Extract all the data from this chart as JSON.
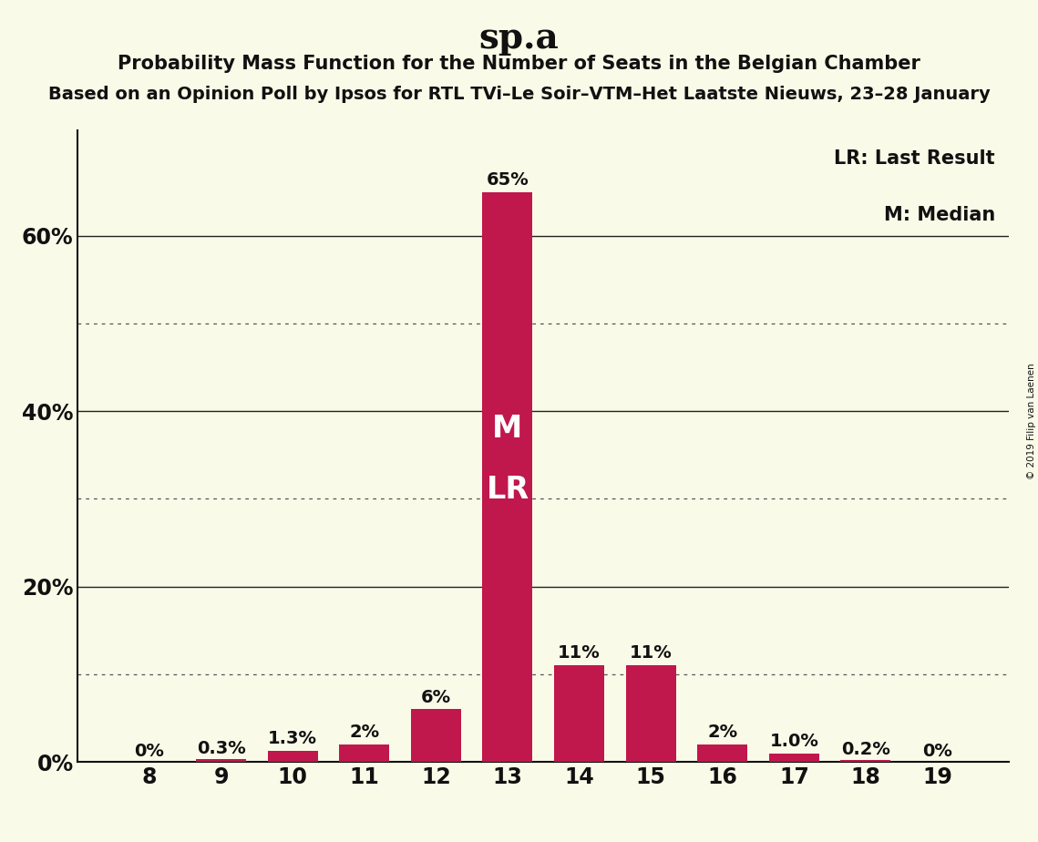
{
  "title": "sp.a",
  "subtitle": "Probability Mass Function for the Number of Seats in the Belgian Chamber",
  "subtitle2": "Based on an Opinion Poll by Ipsos for RTL TVi–Le Soir–VTM–Het Laatste Nieuws, 23–28 January",
  "copyright": "© 2019 Filip van Laenen",
  "categories": [
    8,
    9,
    10,
    11,
    12,
    13,
    14,
    15,
    16,
    17,
    18,
    19
  ],
  "values": [
    0.0,
    0.3,
    1.3,
    2.0,
    6.0,
    65.0,
    11.0,
    11.0,
    2.0,
    1.0,
    0.2,
    0.0
  ],
  "labels": [
    "0%",
    "0.3%",
    "1.3%",
    "2%",
    "6%",
    "65%",
    "11%",
    "11%",
    "2%",
    "1.0%",
    "0.2%",
    "0%"
  ],
  "bar_color": "#C0174C",
  "bg_color": "#FAFAE8",
  "text_color": "#111111",
  "legend_lr": "LR: Last Result",
  "legend_m": "M: Median",
  "ylim": [
    0,
    72
  ],
  "solid_yticks": [
    20,
    40,
    60
  ],
  "dotted_yticks": [
    10,
    30,
    50
  ],
  "ytick_labeled": [
    0,
    20,
    40,
    60
  ],
  "bar_width": 0.7
}
